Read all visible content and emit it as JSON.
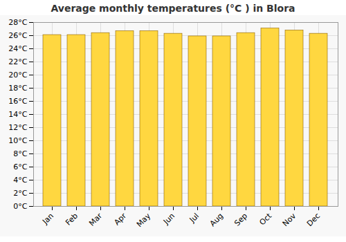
{
  "chart_data": {
    "type": "bar",
    "title": "Average monthly temperatures (°C ) in Blora",
    "categories": [
      "Jan",
      "Feb",
      "Mar",
      "Apr",
      "May",
      "Jun",
      "Jul",
      "Aug",
      "Sep",
      "Oct",
      "Nov",
      "Dec"
    ],
    "values": [
      26.1,
      26.1,
      26.4,
      26.7,
      26.7,
      26.3,
      25.9,
      25.9,
      26.4,
      27.1,
      26.8,
      26.3
    ],
    "color": "#FFD740",
    "ylim": [
      0,
      28
    ],
    "yticks": [
      {
        "value": 0,
        "label": "0°C"
      },
      {
        "value": 2,
        "label": "2°C"
      },
      {
        "value": 4,
        "label": "4°C"
      },
      {
        "value": 6,
        "label": "6°C"
      },
      {
        "value": 8,
        "label": "8°C"
      },
      {
        "value": 10,
        "label": "10°C"
      },
      {
        "value": 12,
        "label": "12°C"
      },
      {
        "value": 14,
        "label": "14°C"
      },
      {
        "value": 16,
        "label": "16°C"
      },
      {
        "value": 18,
        "label": "18°C"
      },
      {
        "value": 20,
        "label": "20°C"
      },
      {
        "value": 22,
        "label": "22°C"
      },
      {
        "value": 24,
        "label": "24°C"
      },
      {
        "value": 26,
        "label": "26°C"
      },
      {
        "value": 28,
        "label": "28°C"
      }
    ],
    "grid": true
  }
}
